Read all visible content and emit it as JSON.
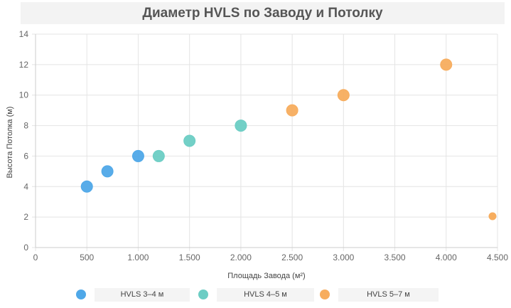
{
  "chart_data": {
    "type": "scatter",
    "title": "Диаметр HVLS по Заводу и Потолку",
    "xlabel": "Площадь Завода (м²)",
    "ylabel": "Высота Потолка (м)",
    "xlim": [
      0,
      4500
    ],
    "ylim": [
      0,
      14
    ],
    "x_ticks": [
      0,
      500,
      1000,
      1500,
      2000,
      2500,
      3000,
      3500,
      4000,
      4500
    ],
    "x_tick_labels": [
      "0",
      "500",
      "1.000",
      "1.500",
      "2.000",
      "2.500",
      "3.000",
      "3.500",
      "4.000",
      "4.500"
    ],
    "y_ticks": [
      0,
      2,
      4,
      6,
      8,
      10,
      12,
      14
    ],
    "y_tick_labels": [
      "0",
      "2",
      "4",
      "6",
      "8",
      "10",
      "12",
      "14"
    ],
    "grid": true,
    "legend_position": "bottom",
    "series": [
      {
        "name": "HVLS 3–4 м",
        "color": "#4fa8e8",
        "points": [
          {
            "x": 500,
            "y": 4
          },
          {
            "x": 700,
            "y": 5
          },
          {
            "x": 1000,
            "y": 6
          }
        ]
      },
      {
        "name": "HVLS 4–5 м",
        "color": "#6ccdc4",
        "points": [
          {
            "x": 1200,
            "y": 6
          },
          {
            "x": 1500,
            "y": 7
          },
          {
            "x": 2000,
            "y": 8
          }
        ]
      },
      {
        "name": "HVLS 5–7 м",
        "color": "#f7ad5e",
        "points": [
          {
            "x": 2500,
            "y": 9
          },
          {
            "x": 3000,
            "y": 10
          },
          {
            "x": 4000,
            "y": 12
          }
        ]
      }
    ]
  }
}
